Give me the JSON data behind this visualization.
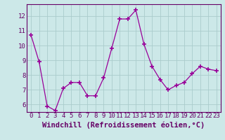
{
  "x": [
    0,
    1,
    2,
    3,
    4,
    5,
    6,
    7,
    8,
    9,
    10,
    11,
    12,
    13,
    14,
    15,
    16,
    17,
    18,
    19,
    20,
    21,
    22,
    23
  ],
  "y": [
    10.7,
    8.9,
    5.9,
    5.6,
    7.1,
    7.5,
    7.5,
    6.6,
    6.6,
    7.8,
    9.8,
    11.8,
    11.8,
    12.4,
    10.1,
    8.6,
    7.7,
    7.0,
    7.3,
    7.5,
    8.1,
    8.6,
    8.4,
    8.3
  ],
  "line_color": "#990099",
  "marker": "+",
  "marker_size": 4,
  "bg_color": "#cce8e8",
  "grid_color": "#aacccc",
  "xlabel": "Windchill (Refroidissement éolien,°C)",
  "ylim": [
    5.5,
    12.8
  ],
  "yticks": [
    6,
    7,
    8,
    9,
    10,
    11,
    12
  ],
  "xticks": [
    0,
    1,
    2,
    3,
    4,
    5,
    6,
    7,
    8,
    9,
    10,
    11,
    12,
    13,
    14,
    15,
    16,
    17,
    18,
    19,
    20,
    21,
    22,
    23
  ],
  "axis_color": "#660066",
  "font_size_xlabel": 7.5,
  "font_size_ticks": 6.5,
  "lw": 0.9
}
